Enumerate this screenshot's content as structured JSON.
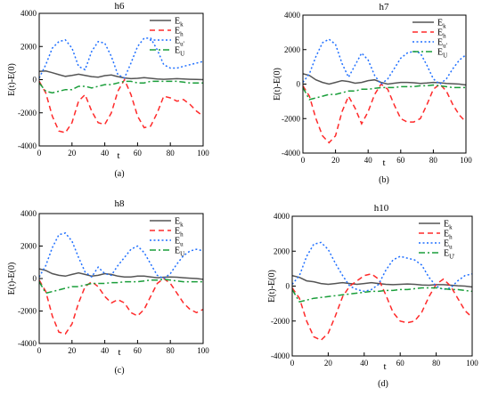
{
  "chart_data": [
    {
      "type": "line",
      "title": "h6",
      "caption": "(a)",
      "xlabel": "t",
      "ylabel": "E(t)-E(0)",
      "xlim": [
        0,
        100
      ],
      "ylim": [
        -4000,
        4000
      ],
      "xticks": [
        "0",
        "20",
        "40",
        "60",
        "80",
        "100"
      ],
      "yticks": [
        "-4000",
        "-2000",
        "0",
        "2000",
        "4000"
      ],
      "legend_position": "top-right",
      "series": [
        {
          "name": "E",
          "sub": "k",
          "color": "#555555",
          "dash": "solid",
          "x": [
            0,
            4,
            8,
            12,
            16,
            20,
            24,
            28,
            32,
            36,
            40,
            44,
            48,
            52,
            56,
            60,
            64,
            68,
            72,
            76,
            80,
            84,
            88,
            92,
            96,
            100
          ],
          "values": [
            500,
            520,
            420,
            300,
            200,
            260,
            330,
            260,
            180,
            150,
            240,
            280,
            180,
            100,
            60,
            80,
            120,
            80,
            40,
            20,
            40,
            60,
            40,
            20,
            10,
            0
          ]
        },
        {
          "name": "E",
          "sub": "h",
          "color": "#ff2a2a",
          "dash": "dashed",
          "x": [
            0,
            4,
            8,
            12,
            16,
            20,
            24,
            28,
            32,
            36,
            40,
            44,
            48,
            52,
            56,
            60,
            64,
            68,
            72,
            76,
            80,
            84,
            88,
            92,
            96,
            100
          ],
          "values": [
            -100,
            -800,
            -2200,
            -3100,
            -3200,
            -2600,
            -1300,
            -900,
            -1900,
            -2600,
            -2700,
            -2000,
            -700,
            0,
            -900,
            -2200,
            -2900,
            -2800,
            -2000,
            -1000,
            -1100,
            -1300,
            -1200,
            -1500,
            -1900,
            -2200
          ]
        },
        {
          "name": "E",
          "sub": "u'",
          "color": "#1f6fff",
          "dash": "dotted",
          "x": [
            0,
            4,
            8,
            12,
            16,
            20,
            24,
            28,
            32,
            36,
            40,
            44,
            48,
            52,
            56,
            60,
            64,
            68,
            72,
            76,
            80,
            84,
            88,
            92,
            96,
            100
          ],
          "values": [
            100,
            900,
            1900,
            2300,
            2400,
            1900,
            800,
            600,
            1700,
            2300,
            2200,
            1400,
            300,
            100,
            1000,
            2000,
            2500,
            2500,
            1800,
            900,
            700,
            700,
            800,
            900,
            1000,
            1100
          ]
        },
        {
          "name": "E",
          "sub": "U",
          "color": "#1a9e3a",
          "dash": "dashdot",
          "x": [
            0,
            4,
            8,
            12,
            16,
            20,
            24,
            28,
            32,
            36,
            40,
            44,
            48,
            52,
            56,
            60,
            64,
            68,
            72,
            76,
            80,
            84,
            88,
            92,
            96,
            100
          ],
          "values": [
            -200,
            -700,
            -800,
            -700,
            -600,
            -600,
            -400,
            -400,
            -500,
            -400,
            -300,
            -300,
            -200,
            -100,
            -100,
            -200,
            -200,
            -100,
            -100,
            -100,
            -100,
            -100,
            -150,
            -200,
            -200,
            -200
          ]
        }
      ]
    },
    {
      "type": "line",
      "title": "h7",
      "caption": "(b)",
      "xlabel": "t",
      "ylabel": "E(t)-E(0)",
      "xlim": [
        0,
        100
      ],
      "ylim": [
        -4000,
        4000
      ],
      "xticks": [
        "0",
        "20",
        "40",
        "60",
        "80",
        "100"
      ],
      "yticks": [
        "-4000",
        "-2000",
        "0",
        "2000",
        "4000"
      ],
      "legend_position": "top-right",
      "series": [
        {
          "name": "E",
          "sub": "k",
          "color": "#555555",
          "dash": "solid",
          "x": [
            0,
            4,
            8,
            12,
            16,
            20,
            24,
            28,
            32,
            36,
            40,
            44,
            48,
            52,
            56,
            60,
            64,
            68,
            72,
            76,
            80,
            84,
            88,
            92,
            96,
            100
          ],
          "values": [
            600,
            500,
            250,
            100,
            0,
            100,
            200,
            150,
            50,
            100,
            200,
            250,
            100,
            0,
            50,
            100,
            100,
            80,
            40,
            60,
            100,
            80,
            40,
            20,
            0,
            -50
          ]
        },
        {
          "name": "E",
          "sub": "h",
          "color": "#ff2a2a",
          "dash": "dashed",
          "x": [
            0,
            4,
            8,
            12,
            16,
            20,
            24,
            28,
            32,
            36,
            40,
            44,
            48,
            52,
            56,
            60,
            64,
            68,
            72,
            76,
            80,
            84,
            88,
            92,
            96,
            100
          ],
          "values": [
            -100,
            -700,
            -2000,
            -3000,
            -3400,
            -3000,
            -1600,
            -700,
            -1400,
            -2300,
            -1600,
            -600,
            0,
            -300,
            -1200,
            -2000,
            -2200,
            -2200,
            -2000,
            -1200,
            -300,
            0,
            -400,
            -1200,
            -1800,
            -2200
          ]
        },
        {
          "name": "E",
          "sub": "u'",
          "color": "#1f6fff",
          "dash": "dotted",
          "x": [
            0,
            4,
            8,
            12,
            16,
            20,
            24,
            28,
            32,
            36,
            40,
            44,
            48,
            52,
            56,
            60,
            64,
            68,
            72,
            76,
            80,
            84,
            88,
            92,
            96,
            100
          ],
          "values": [
            100,
            600,
            1600,
            2400,
            2600,
            2300,
            1200,
            400,
            1100,
            1800,
            1400,
            500,
            0,
            300,
            900,
            1500,
            1800,
            1900,
            1800,
            1100,
            300,
            0,
            300,
            900,
            1400,
            1700
          ]
        },
        {
          "name": "E",
          "sub": "U",
          "color": "#1a9e3a",
          "dash": "dashdot",
          "x": [
            0,
            4,
            8,
            12,
            16,
            20,
            24,
            28,
            32,
            36,
            40,
            44,
            48,
            52,
            56,
            60,
            64,
            68,
            72,
            76,
            80,
            84,
            88,
            92,
            96,
            100
          ],
          "values": [
            -200,
            -900,
            -800,
            -700,
            -600,
            -600,
            -500,
            -400,
            -400,
            -300,
            -300,
            -250,
            -200,
            -200,
            -200,
            -150,
            -150,
            -150,
            -100,
            -100,
            -50,
            -100,
            -150,
            -200,
            -200,
            -200
          ]
        }
      ]
    },
    {
      "type": "line",
      "title": "h8",
      "caption": "(c)",
      "xlabel": "t",
      "ylabel": "E(t)-E(0)",
      "xlim": [
        0,
        100
      ],
      "ylim": [
        -4000,
        4000
      ],
      "xticks": [
        "0",
        "20",
        "40",
        "60",
        "80",
        "100"
      ],
      "yticks": [
        "-4000",
        "-2000",
        "0",
        "2000",
        "4000"
      ],
      "legend_position": "top-right",
      "series": [
        {
          "name": "E",
          "sub": "k",
          "color": "#555555",
          "dash": "solid",
          "x": [
            0,
            4,
            8,
            12,
            16,
            20,
            24,
            28,
            32,
            36,
            40,
            44,
            48,
            52,
            56,
            60,
            64,
            68,
            72,
            76,
            80,
            84,
            88,
            92,
            96,
            100
          ],
          "values": [
            600,
            500,
            300,
            200,
            150,
            250,
            350,
            250,
            150,
            200,
            300,
            250,
            150,
            100,
            100,
            150,
            150,
            100,
            50,
            80,
            100,
            80,
            50,
            20,
            0,
            -50
          ]
        },
        {
          "name": "E",
          "sub": "h",
          "color": "#ff2a2a",
          "dash": "dashed",
          "x": [
            0,
            4,
            8,
            12,
            16,
            20,
            24,
            28,
            32,
            36,
            40,
            44,
            48,
            52,
            56,
            60,
            64,
            68,
            72,
            76,
            80,
            84,
            88,
            92,
            96,
            100
          ],
          "values": [
            -100,
            -800,
            -2300,
            -3300,
            -3400,
            -2800,
            -1500,
            -500,
            -200,
            -500,
            -1100,
            -1500,
            -1300,
            -1500,
            -2100,
            -2300,
            -1900,
            -1100,
            -300,
            0,
            -300,
            -900,
            -1500,
            -1900,
            -2100,
            -1900
          ]
        },
        {
          "name": "E",
          "sub": "u",
          "color": "#1f6fff",
          "dash": "dotted",
          "x": [
            0,
            4,
            8,
            12,
            16,
            20,
            24,
            28,
            32,
            36,
            40,
            44,
            48,
            52,
            56,
            60,
            64,
            68,
            72,
            76,
            80,
            84,
            88,
            92,
            96,
            100
          ],
          "values": [
            100,
            800,
            1900,
            2700,
            2800,
            2300,
            1300,
            400,
            100,
            700,
            300,
            200,
            800,
            1300,
            1800,
            2000,
            1600,
            900,
            200,
            0,
            300,
            900,
            1400,
            1700,
            1800,
            1700
          ]
        },
        {
          "name": "E",
          "sub": "U",
          "color": "#1a9e3a",
          "dash": "dashdot",
          "x": [
            0,
            4,
            8,
            12,
            16,
            20,
            24,
            28,
            32,
            36,
            40,
            44,
            48,
            52,
            56,
            60,
            64,
            68,
            72,
            76,
            80,
            84,
            88,
            92,
            96,
            100
          ],
          "values": [
            -200,
            -900,
            -800,
            -700,
            -600,
            -500,
            -500,
            -400,
            -300,
            -300,
            -300,
            -250,
            -250,
            -200,
            -200,
            -200,
            -150,
            -100,
            -100,
            -50,
            -100,
            -150,
            -200,
            -200,
            -200,
            -200
          ]
        }
      ]
    },
    {
      "type": "line",
      "title": "h10",
      "caption": "(d)",
      "xlabel": "t",
      "ylabel": "E(t)-E(0)",
      "xlim": [
        0,
        100
      ],
      "ylim": [
        -4000,
        4000
      ],
      "xticks": [
        "0",
        "20",
        "40",
        "60",
        "80",
        "100"
      ],
      "yticks": [
        "-4000",
        "-2000",
        "0",
        "2000",
        "4000"
      ],
      "legend_position": "top-right",
      "series": [
        {
          "name": "E",
          "sub": "k",
          "color": "#555555",
          "dash": "solid",
          "x": [
            0,
            4,
            8,
            12,
            16,
            20,
            24,
            28,
            32,
            36,
            40,
            44,
            48,
            52,
            56,
            60,
            64,
            68,
            72,
            76,
            80,
            84,
            88,
            92,
            96,
            100
          ],
          "values": [
            600,
            500,
            300,
            250,
            150,
            100,
            150,
            200,
            150,
            100,
            150,
            200,
            150,
            100,
            80,
            100,
            120,
            100,
            60,
            50,
            80,
            80,
            50,
            20,
            0,
            -50
          ]
        },
        {
          "name": "E",
          "sub": "h",
          "color": "#ff2a2a",
          "dash": "dashed",
          "x": [
            0,
            4,
            8,
            12,
            16,
            20,
            24,
            28,
            32,
            36,
            40,
            44,
            48,
            52,
            56,
            60,
            64,
            68,
            72,
            76,
            80,
            84,
            88,
            92,
            96,
            100
          ],
          "values": [
            -100,
            -700,
            -2000,
            -2900,
            -3100,
            -2700,
            -1700,
            -600,
            0,
            300,
            600,
            700,
            400,
            -500,
            -1500,
            -2000,
            -2100,
            -2000,
            -1500,
            -600,
            100,
            400,
            0,
            -700,
            -1400,
            -1800
          ]
        },
        {
          "name": "E",
          "sub": "u",
          "color": "#1f6fff",
          "dash": "dotted",
          "x": [
            0,
            4,
            8,
            12,
            16,
            20,
            24,
            28,
            32,
            36,
            40,
            44,
            48,
            52,
            56,
            60,
            64,
            68,
            72,
            76,
            80,
            84,
            88,
            92,
            96,
            100
          ],
          "values": [
            100,
            600,
            1700,
            2400,
            2500,
            2100,
            1300,
            600,
            0,
            -200,
            -300,
            -200,
            100,
            900,
            1500,
            1700,
            1600,
            1500,
            1200,
            500,
            0,
            -200,
            -100,
            300,
            600,
            700
          ]
        },
        {
          "name": "E",
          "sub": "U'",
          "color": "#1a9e3a",
          "dash": "dashdot",
          "x": [
            0,
            4,
            8,
            12,
            16,
            20,
            24,
            28,
            32,
            36,
            40,
            44,
            48,
            52,
            56,
            60,
            64,
            68,
            72,
            76,
            80,
            84,
            88,
            92,
            96,
            100
          ],
          "values": [
            -200,
            -900,
            -800,
            -700,
            -650,
            -600,
            -550,
            -500,
            -450,
            -400,
            -350,
            -300,
            -300,
            -250,
            -250,
            -200,
            -200,
            -150,
            -100,
            -100,
            -100,
            -150,
            -200,
            -200,
            -250,
            -300
          ]
        }
      ]
    }
  ]
}
